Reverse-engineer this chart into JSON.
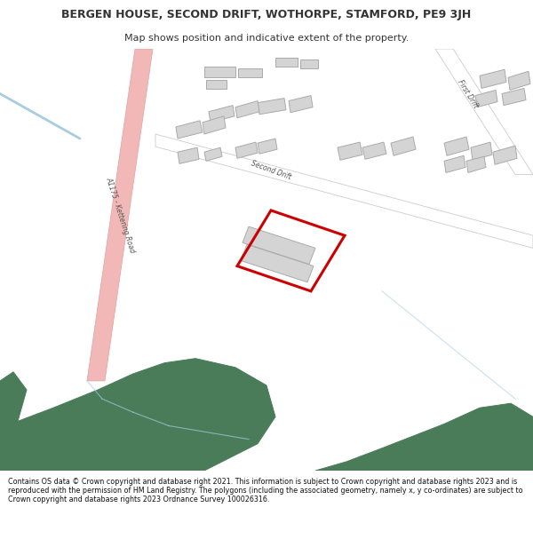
{
  "title": "BERGEN HOUSE, SECOND DRIFT, WOTHORPE, STAMFORD, PE9 3JH",
  "subtitle": "Map shows position and indicative extent of the property.",
  "footer": "Contains OS data © Crown copyright and database right 2021. This information is subject to Crown copyright and database rights 2023 and is reproduced with the permission of HM Land Registry. The polygons (including the associated geometry, namely x, y co-ordinates) are subject to Crown copyright and database rights 2023 Ordnance Survey 100026316.",
  "map_bg": "#f8f8f8",
  "green_color": "#4a7c59",
  "road_color": "#f2b8b8",
  "road_border": "#e0a0a0",
  "blue_line": "#a8cce0",
  "building_fill": "#d4d4d4",
  "building_edge": "#aaaaaa",
  "highlight_red": "#cc0000",
  "text_color": "#333333",
  "footer_bg": "#e8ede8",
  "white": "#ffffff"
}
